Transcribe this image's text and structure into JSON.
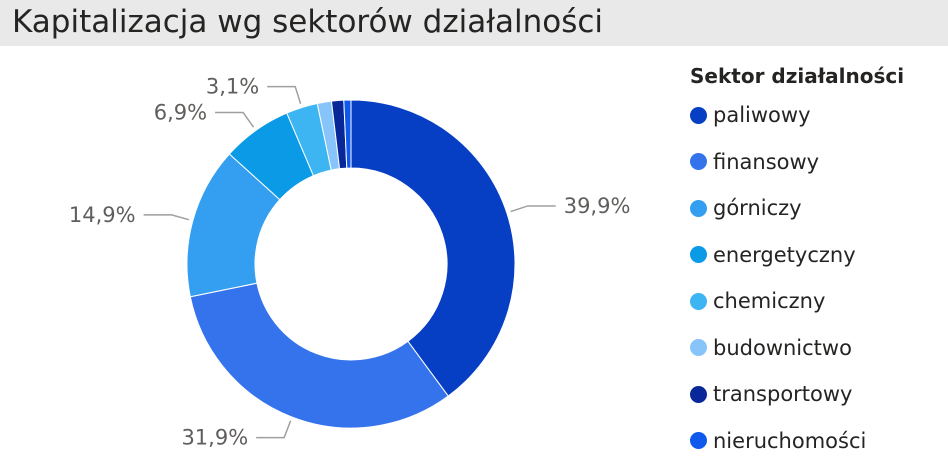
{
  "title": "Kapitalizacja wg sektorów działalności",
  "chart_data": {
    "type": "pie",
    "variant": "donut",
    "legend_title": "Sektor działalności",
    "legend_position": "right",
    "categories": [
      "paliwowy",
      "finansowy",
      "górniczy",
      "energetyczny",
      "chemiczny",
      "budownictwo",
      "transportowy",
      "nieruchomości"
    ],
    "values": [
      39.9,
      31.9,
      14.9,
      6.9,
      3.1,
      1.4,
      1.2,
      0.7
    ],
    "colors": [
      "#063fc4",
      "#3573ed",
      "#349ff0",
      "#0a9ae6",
      "#3cb5f2",
      "#86c4fa",
      "#08289a",
      "#0f59ec"
    ],
    "data_labels": [
      {
        "text": "39,9%",
        "slice": 0
      },
      {
        "text": "31,9%",
        "slice": 1
      },
      {
        "text": "14,9%",
        "slice": 2
      },
      {
        "text": "6,9%",
        "slice": 3
      },
      {
        "text": "3,1%",
        "slice": 4
      }
    ]
  }
}
